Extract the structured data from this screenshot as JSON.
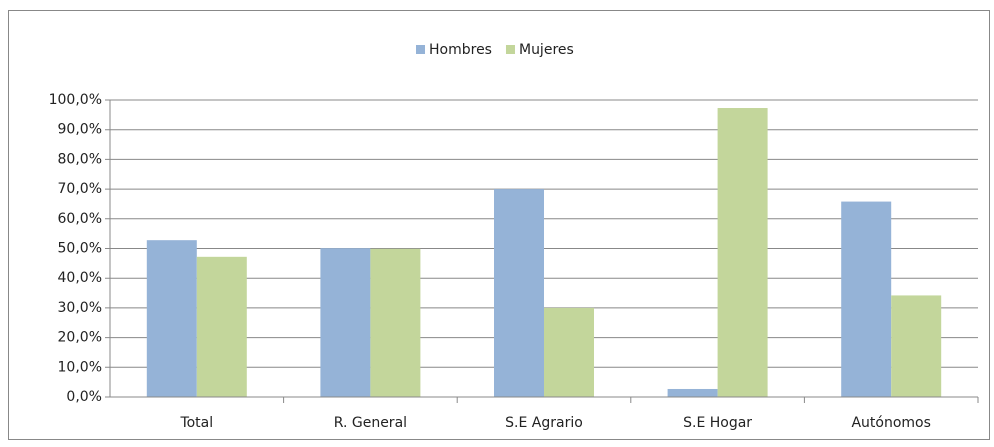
{
  "chart_data": {
    "type": "bar",
    "categories": [
      "Total",
      "R. General",
      "S.E Agrario",
      "S.E Hogar",
      "Autónomos"
    ],
    "series": [
      {
        "name": "Hombres",
        "color": "#95b3d7",
        "values": [
          52.8,
          50.1,
          70.0,
          2.7,
          65.8
        ]
      },
      {
        "name": "Mujeres",
        "color": "#c3d69b",
        "values": [
          47.2,
          49.9,
          30.0,
          97.3,
          34.2
        ]
      }
    ],
    "ylim": [
      0,
      100
    ],
    "yticks": [
      {
        "value": 0,
        "label": "0,0%"
      },
      {
        "value": 10,
        "label": "10,0%"
      },
      {
        "value": 20,
        "label": "20,0%"
      },
      {
        "value": 30,
        "label": "30,0%"
      },
      {
        "value": 40,
        "label": "40,0%"
      },
      {
        "value": 50,
        "label": "50,0%"
      },
      {
        "value": 60,
        "label": "60,0%"
      },
      {
        "value": 70,
        "label": "70,0%"
      },
      {
        "value": 80,
        "label": "80,0%"
      },
      {
        "value": 90,
        "label": "90,0%"
      },
      {
        "value": 100,
        "label": "100,0%"
      }
    ],
    "grid": true,
    "legend": "top"
  }
}
